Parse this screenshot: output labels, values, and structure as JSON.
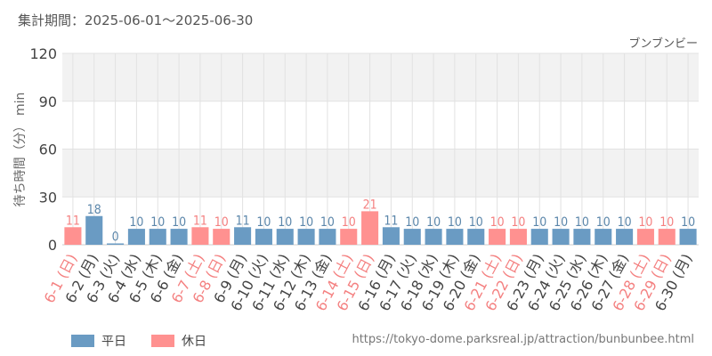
{
  "header": {
    "period": "集計期間：2025-06-01～2025-06-30",
    "attraction": "ブンブンビー"
  },
  "source_url": "https://tokyo-dome.parksreal.jp/attraction/bunbunbee.html",
  "chart_data": {
    "type": "bar",
    "title": "",
    "xlabel": "",
    "ylabel": "待ち時間（分） min",
    "ylim": [
      0,
      120
    ],
    "yticks": [
      0,
      30,
      60,
      90,
      120
    ],
    "grid": true,
    "categories": [
      "6-1 (日)",
      "6-2 (月)",
      "6-3 (火)",
      "6-4 (水)",
      "6-5 (木)",
      "6-6 (金)",
      "6-7 (土)",
      "6-8 (日)",
      "6-9 (月)",
      "6-10 (火)",
      "6-11 (水)",
      "6-12 (木)",
      "6-13 (金)",
      "6-14 (土)",
      "6-15 (日)",
      "6-16 (月)",
      "6-17 (火)",
      "6-18 (水)",
      "6-19 (木)",
      "6-20 (金)",
      "6-21 (土)",
      "6-22 (日)",
      "6-23 (月)",
      "6-24 (火)",
      "6-25 (水)",
      "6-26 (木)",
      "6-27 (金)",
      "6-28 (土)",
      "6-29 (日)",
      "6-30 (月)"
    ],
    "values": [
      11,
      18,
      0,
      10,
      10,
      10,
      11,
      10,
      11,
      10,
      10,
      10,
      10,
      10,
      21,
      11,
      10,
      10,
      10,
      10,
      10,
      10,
      10,
      10,
      10,
      10,
      10,
      10,
      10,
      10
    ],
    "day_type": [
      "holiday",
      "weekday",
      "weekday",
      "weekday",
      "weekday",
      "weekday",
      "holiday",
      "holiday",
      "weekday",
      "weekday",
      "weekday",
      "weekday",
      "weekday",
      "holiday",
      "holiday",
      "weekday",
      "weekday",
      "weekday",
      "weekday",
      "weekday",
      "holiday",
      "holiday",
      "weekday",
      "weekday",
      "weekday",
      "weekday",
      "weekday",
      "holiday",
      "holiday",
      "weekday"
    ],
    "legend": {
      "position": "bottom-left",
      "entries": [
        {
          "key": "weekday",
          "label": "平日",
          "color": "#6a9bc3"
        },
        {
          "key": "holiday",
          "label": "休日",
          "color": "#ff9190"
        }
      ]
    },
    "colors": {
      "weekday_label": "#5b86aa",
      "holiday_label": "#f48080",
      "axis_text": "#444444",
      "band": "#f2f2f2",
      "grid": "#e2e2e2"
    }
  }
}
